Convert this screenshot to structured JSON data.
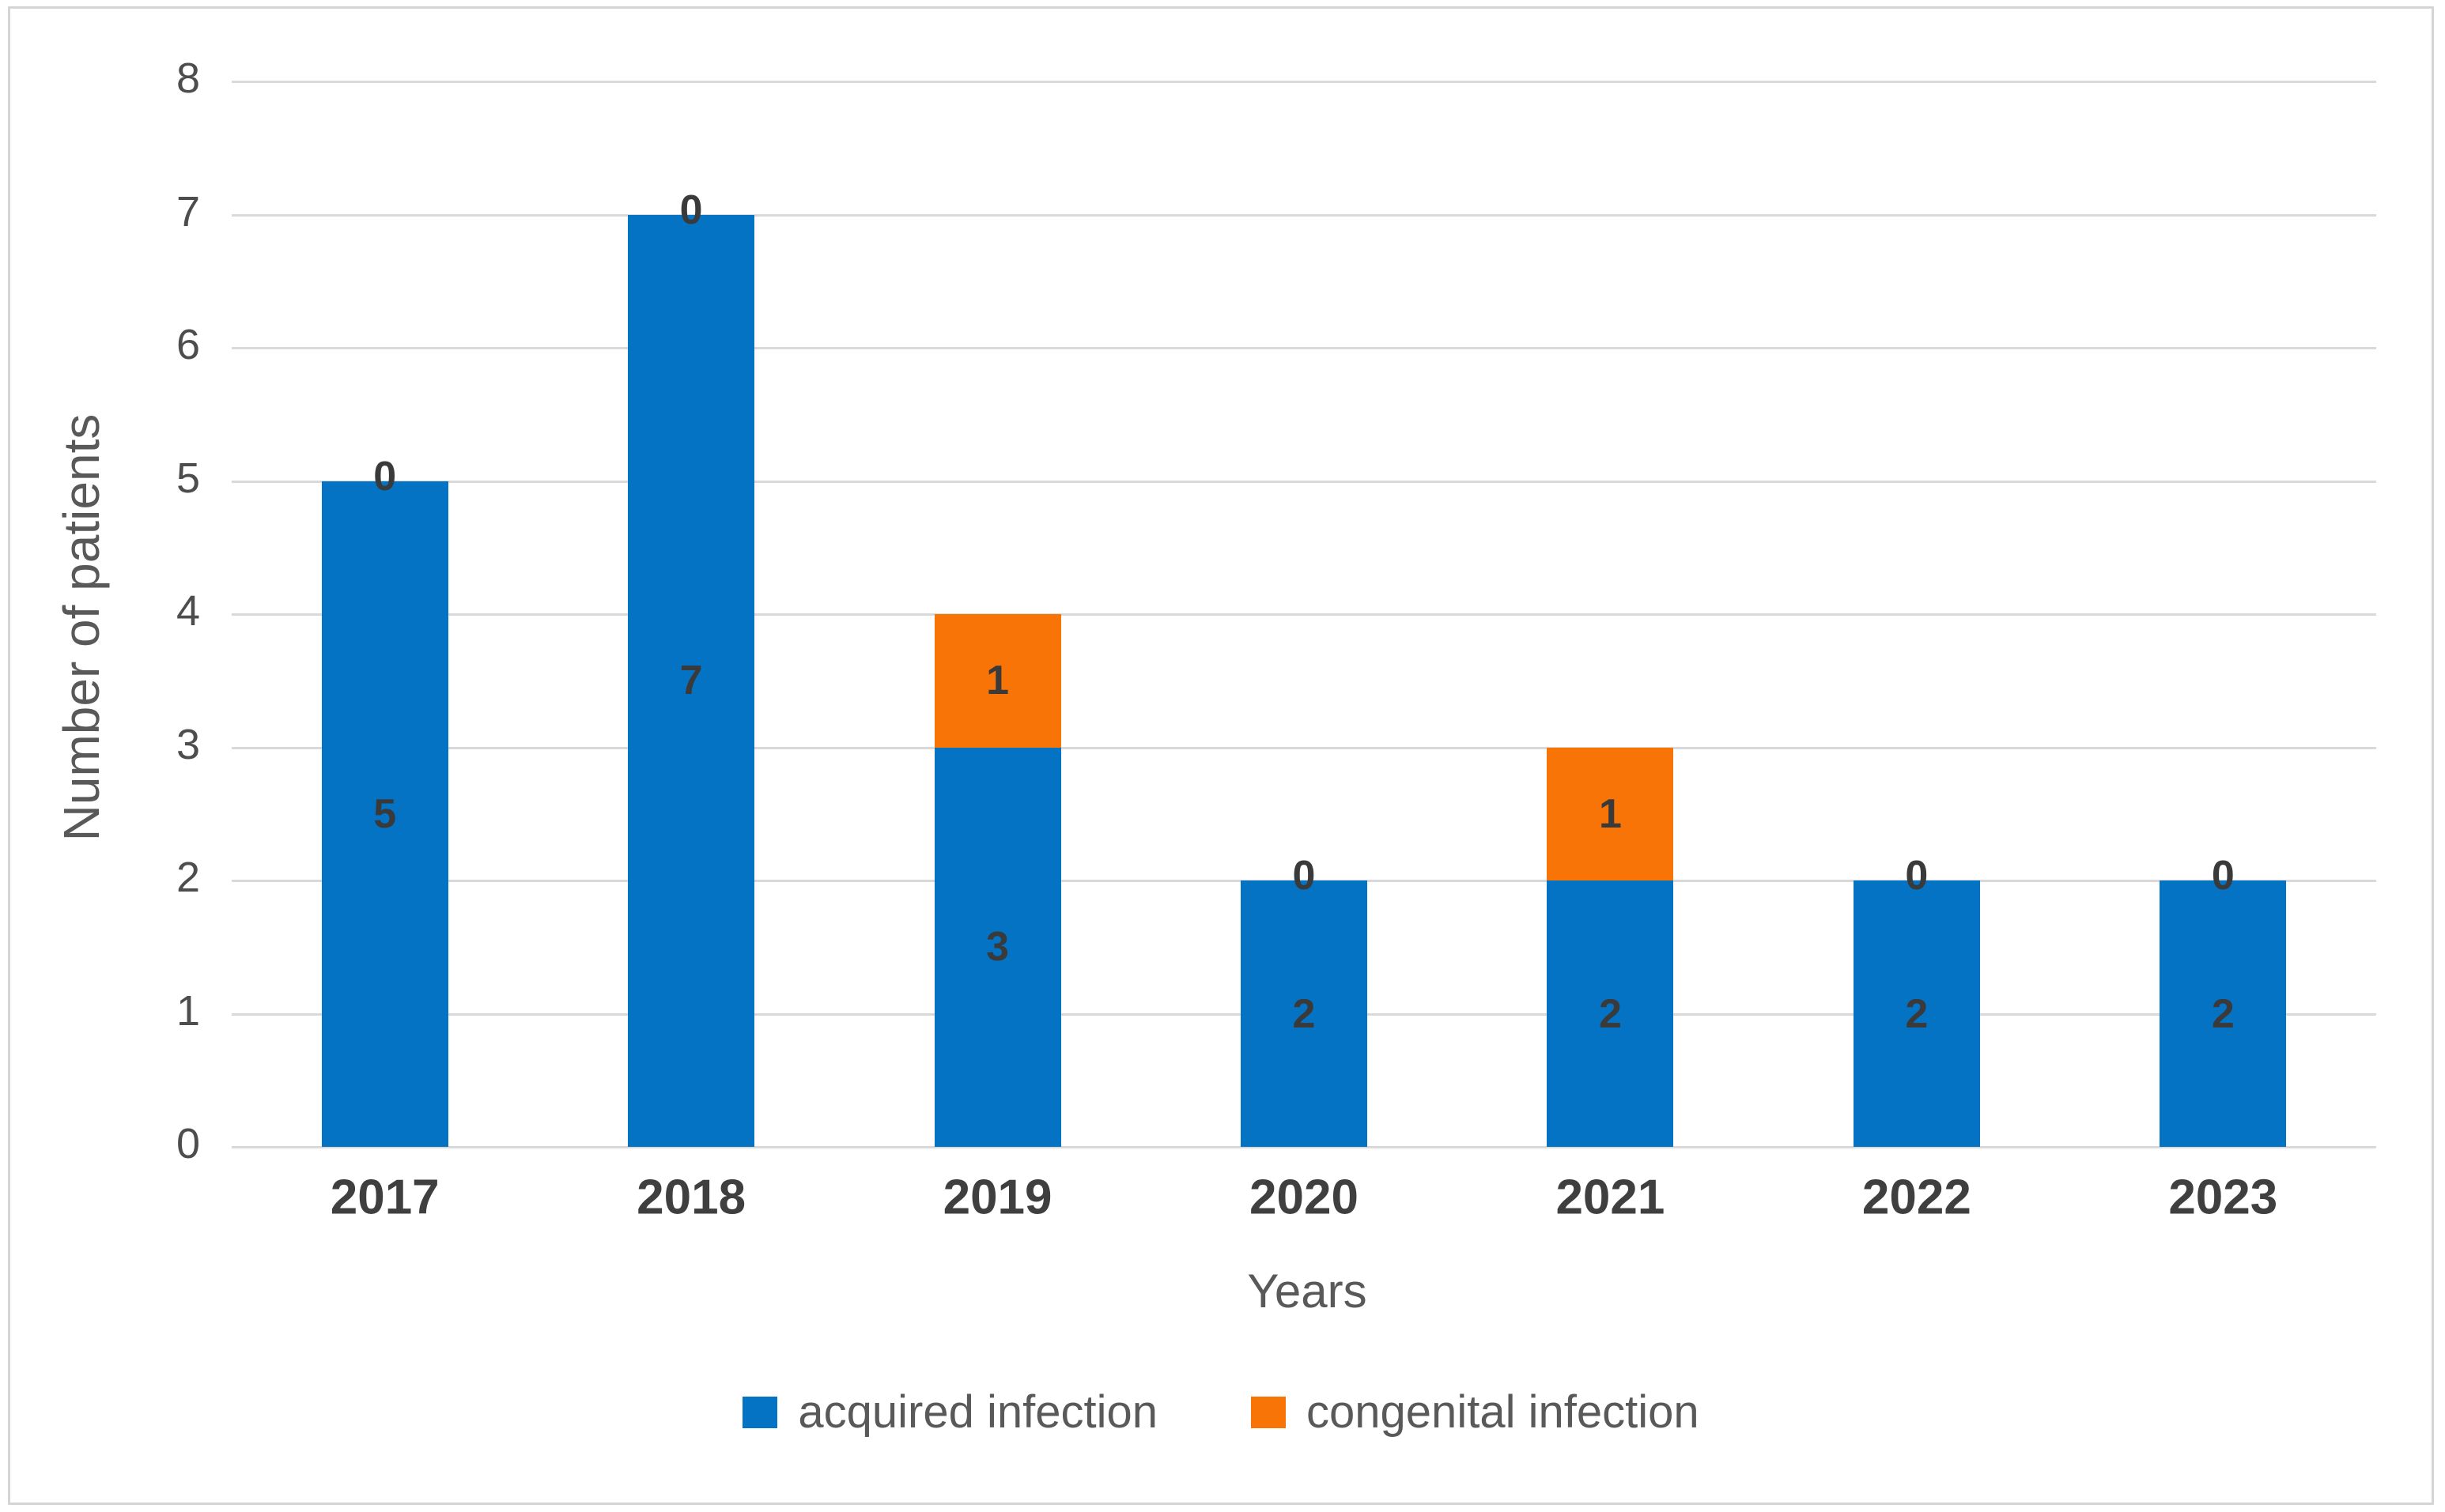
{
  "figure": {
    "background": "#FFFFFF",
    "border_color": "#D5D5D5"
  },
  "chart_data": {
    "type": "bar",
    "stacked": true,
    "title": "",
    "xlabel": "Years",
    "ylabel": "Number of patients",
    "categories": [
      "2017",
      "2018",
      "2019",
      "2020",
      "2021",
      "2022",
      "2023"
    ],
    "series": [
      {
        "name": "acquired infection",
        "color": "#0473C4",
        "values": [
          5,
          7,
          3,
          2,
          2,
          2,
          2
        ]
      },
      {
        "name": "congenital infection",
        "color": "#F97406",
        "values": [
          0,
          0,
          1,
          0,
          1,
          0,
          0
        ]
      }
    ],
    "data_labels_shown": true,
    "data_label_color": "#3A3A3A",
    "ylim": [
      0,
      8
    ],
    "ytick_interval": 1,
    "yticks": [
      "0",
      "1",
      "2",
      "3",
      "4",
      "5",
      "6",
      "7",
      "8"
    ],
    "grid": "horizontal",
    "gridline_color": "#D9D9D9",
    "legend_position": "bottom-center",
    "axis_text_color": "#595959"
  }
}
